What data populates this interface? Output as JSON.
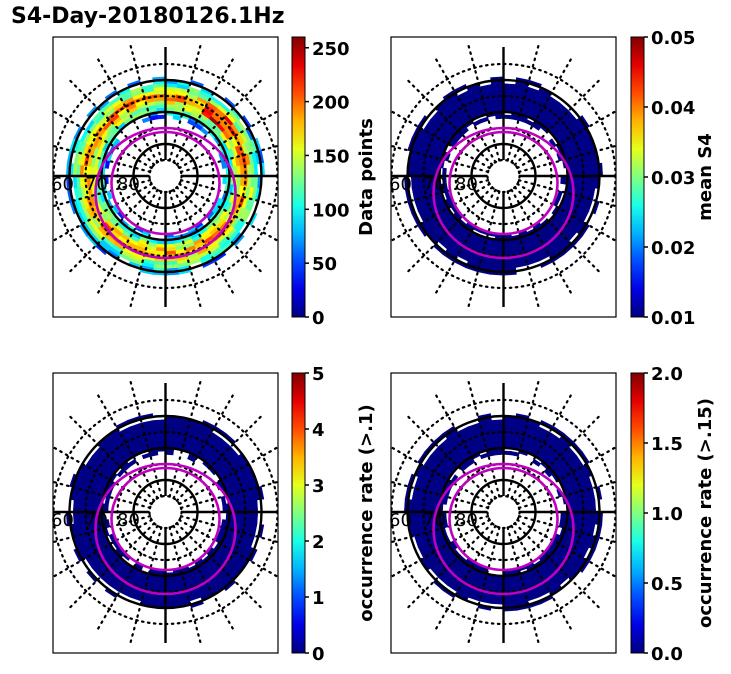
{
  "figure": {
    "title": "S4-Day-20180126.1Hz"
  },
  "chart_data": [
    {
      "type": "heatmap",
      "projection": "polar (magnetic latitude / local time)",
      "title": "",
      "colormap": "jet",
      "colorbar": {
        "label": "Data points",
        "range": [
          0,
          260
        ],
        "ticks": [
          0,
          50,
          100,
          150,
          200,
          250
        ],
        "tick_labels": [
          "0",
          "50",
          "100",
          "150",
          "200",
          "250"
        ]
      },
      "latitude_labels": [
        "60",
        "70",
        "80"
      ],
      "band_range_lat": [
        60,
        72
      ],
      "typical_value": 90,
      "peak_value": 245,
      "peak_sector": "pre-noon/dawn (upper right)",
      "notes": "Coverage ring with values mostly 40-160, peaks ~200-250 on dawn side"
    },
    {
      "type": "heatmap",
      "projection": "polar (magnetic latitude / local time)",
      "colormap": "jet",
      "colorbar": {
        "label": "mean S4",
        "range": [
          0.01,
          0.05
        ],
        "ticks": [
          0.01,
          0.02,
          0.03,
          0.04,
          0.05
        ],
        "tick_labels": [
          "0.01",
          "0.02",
          "0.03",
          "0.04",
          "0.05"
        ]
      },
      "latitude_labels": [
        "60",
        "70",
        "80"
      ],
      "typical_value": 0.01
    },
    {
      "type": "heatmap",
      "projection": "polar (magnetic latitude / local time)",
      "colormap": "jet",
      "colorbar": {
        "label": "occurrence rate (>.1)",
        "range": [
          0,
          5
        ],
        "ticks": [
          0,
          1,
          2,
          3,
          4,
          5
        ],
        "tick_labels": [
          "0",
          "1",
          "2",
          "3",
          "4",
          "5"
        ]
      },
      "latitude_labels": [
        "60",
        "70",
        "80"
      ],
      "typical_value": 0
    },
    {
      "type": "heatmap",
      "projection": "polar (magnetic latitude / local time)",
      "colormap": "jet",
      "colorbar": {
        "label": "occurrence rate (>.15)",
        "range": [
          0.0,
          2.0
        ],
        "ticks": [
          0.0,
          0.5,
          1.0,
          1.5,
          2.0
        ],
        "tick_labels": [
          "0.0",
          "0.5",
          "1.0",
          "1.5",
          "2.0"
        ]
      },
      "latitude_labels": [
        "60",
        "70",
        "80"
      ],
      "typical_value": 0
    }
  ],
  "colors": {
    "ring_lines": "#000000",
    "oval_boundary": "#c000c0",
    "low_value": "#00007f"
  }
}
